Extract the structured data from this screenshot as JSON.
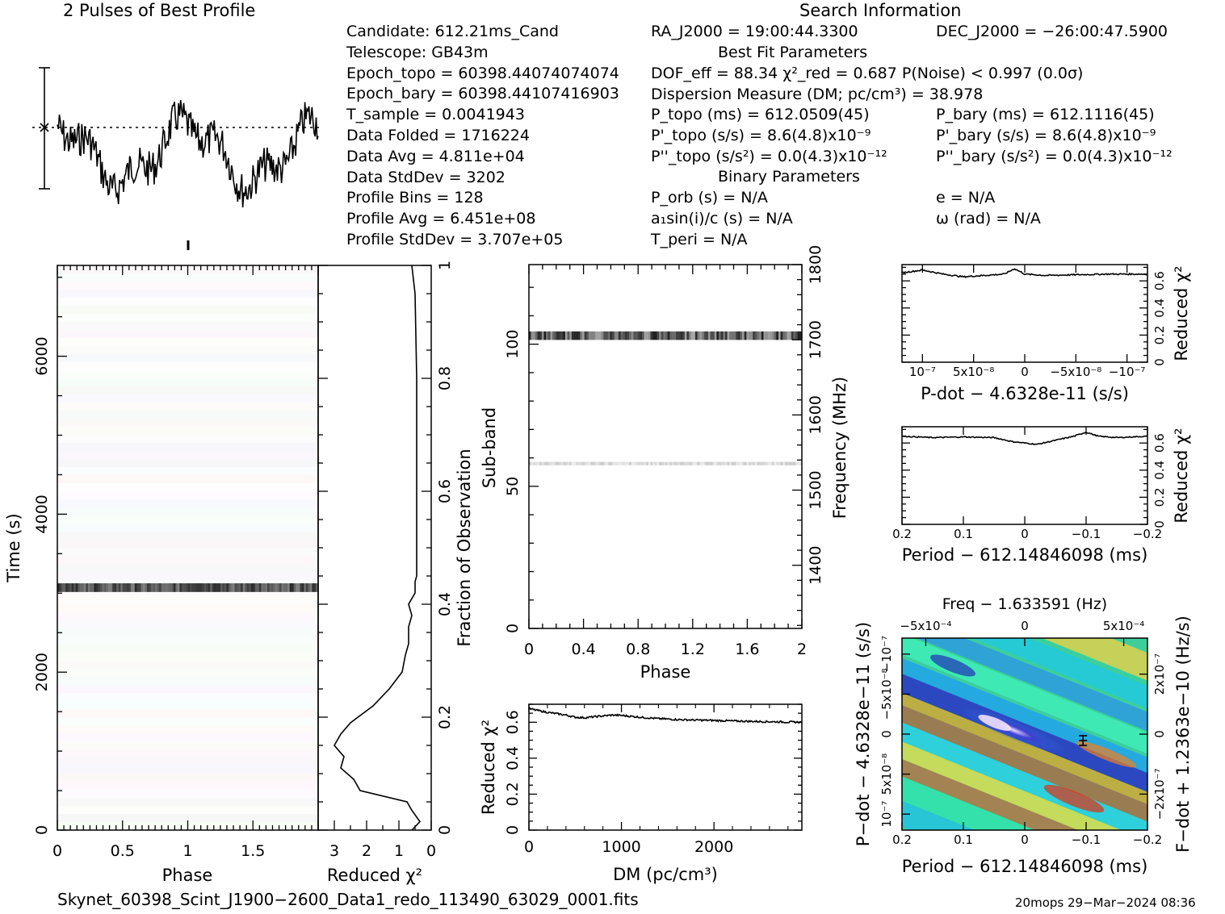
{
  "titles": {
    "profile": "2 Pulses of Best Profile",
    "search": "Search Information",
    "best_fit": "Best Fit Parameters",
    "binary": "Binary Parameters"
  },
  "info_left": [
    "Candidate:  612.21ms_Cand",
    "Telescope:  GB43m",
    "Epoch_topo = 60398.44074074074",
    "Epoch_bary = 60398.44107416903",
    "T_sample        =  0.0041943",
    "Data Folded     =  1716224",
    "Data Avg        =  4.811e+04",
    "Data StdDev     =  3202",
    "Profile Bins    =  128",
    "Profile Avg     =  6.451e+08",
    "Profile StdDev  =  3.707e+05"
  ],
  "info_mid": [
    "RA_J2000 = 19:00:44.3300",
    "DOF_eff = 88.34  χ²_red = 0.687  P(Noise) < 0.997  (0.0σ)",
    "Dispersion Measure (DM; pc/cm³) = 38.978",
    "P_topo (ms) =  612.0509(45)",
    "P'_topo (s/s) =  8.6(4.8)x10⁻⁹",
    "P''_topo (s/s²) = 0.0(4.3)x10⁻¹²",
    "P_orb (s) = N/A",
    "a₁sin(i)/c (s) = N/A",
    "T_peri = N/A"
  ],
  "info_right": [
    "DEC_J2000 = −26:00:47.5900",
    "P_bary (ms) =  612.1116(45)",
    "P'_bary (s/s) =  8.6(4.8)x10⁻⁹",
    "P''_bary (s/s²) = 0.0(4.3)x10⁻¹²",
    "e = N/A",
    "ω (rad) = N/A"
  ],
  "footer": {
    "filename": "Skynet_60398_Scint_J1900−2600_Data1_redo_113490_63029_0001.fits",
    "stamp": "20mops 29−Mar−2024 08:36"
  },
  "chart_data": [
    {
      "id": "time-phase",
      "type": "heatmap",
      "xlabel": "Phase",
      "ylabel": "Time (s)",
      "xlim": [
        0,
        2
      ],
      "ylim": [
        0,
        7150
      ],
      "x_ticks": [
        "0",
        "0.5",
        "1",
        "1.5"
      ],
      "y_ticks": [
        "0",
        "2000",
        "4000",
        "6000"
      ],
      "features": [
        {
          "label": "strong row",
          "time_center": 3070,
          "time_halfwidth": 55
        }
      ]
    },
    {
      "id": "reduced-chi2-vs-fraction",
      "type": "line",
      "xlabel": "Reduced χ²",
      "ylabel": "Fraction of Observation",
      "xlim": [
        3.5,
        0
      ],
      "ylim": [
        0,
        1
      ],
      "x_ticks": [
        "3",
        "2",
        "1",
        "0"
      ],
      "y_ticks": [
        "0",
        "0.2",
        "0.4",
        "0.6",
        "0.8",
        "1"
      ],
      "x": [
        0.6,
        0.35,
        0.6,
        0.75,
        2.2,
        2.4,
        2.8,
        2.7,
        3.0,
        2.8,
        2.5,
        1.8,
        1.3,
        0.9,
        0.8,
        0.7,
        0.7,
        0.6,
        0.7,
        0.5,
        0.5,
        0.45,
        0.45,
        0.45,
        0.5,
        0.6
      ],
      "y": [
        0,
        0.015,
        0.035,
        0.05,
        0.07,
        0.09,
        0.11,
        0.13,
        0.15,
        0.17,
        0.19,
        0.22,
        0.25,
        0.28,
        0.31,
        0.33,
        0.36,
        0.38,
        0.4,
        0.42,
        0.44,
        0.45,
        0.6,
        0.8,
        0.95,
        1.0
      ]
    },
    {
      "id": "subband-phase",
      "type": "heatmap",
      "xlabel": "Phase",
      "ylabel": "Sub-band",
      "y2label": "Frequency (MHz)",
      "xlim": [
        0,
        2
      ],
      "ylim": [
        0,
        128
      ],
      "y2lim": [
        1316,
        1800
      ],
      "x_ticks": [
        "0",
        "0.4",
        "0.8",
        "1.2",
        "1.6",
        "2"
      ],
      "y_ticks": [
        "0",
        "50",
        "100"
      ],
      "y2_ticks": [
        "1400",
        "1500",
        "1600",
        "1700",
        "1800"
      ],
      "features": [
        {
          "label": "strong band",
          "subband": 103
        },
        {
          "label": "faint band",
          "subband": 58
        }
      ]
    },
    {
      "id": "pulse-profile",
      "type": "line",
      "xlim": [
        0,
        2
      ],
      "series_hint": "noisy profile repeated twice, dips near phase 0.5 and 1.5"
    },
    {
      "id": "dm-curve",
      "type": "line",
      "xlabel": "DM (pc/cm³)",
      "ylabel": "Reduced χ²",
      "xlim": [
        0,
        2950
      ],
      "ylim": [
        0,
        0.7
      ],
      "x_ticks": [
        "0",
        "1000",
        "2000"
      ],
      "y_ticks": [
        "0",
        "0.2",
        "0.4",
        "0.6"
      ],
      "x": [
        0,
        200,
        400,
        500,
        600,
        800,
        900,
        1000,
        1200,
        1400,
        1600,
        1800,
        2000,
        2200,
        2400,
        2600,
        2800,
        2950
      ],
      "y": [
        0.675,
        0.655,
        0.64,
        0.628,
        0.625,
        0.635,
        0.64,
        0.638,
        0.628,
        0.62,
        0.615,
        0.612,
        0.61,
        0.607,
        0.605,
        0.603,
        0.601,
        0.6
      ]
    },
    {
      "id": "pdot-curve",
      "type": "line",
      "xlabel": "P-dot − 4.6328e-11 (s/s)",
      "ylabel": "Reduced χ²",
      "xlim": [
        1.2e-07,
        -1.2e-07
      ],
      "ylim": [
        0,
        0.72
      ],
      "x_ticks": [
        "10⁻⁷",
        "5x10⁻⁸",
        "0",
        "−5x10⁻⁸",
        "−10⁻⁷"
      ],
      "y_ticks": [
        "0",
        "0.2",
        "0.4",
        "0.6"
      ],
      "x": [
        1.2e-07,
        1e-07,
        8e-08,
        6e-08,
        4e-08,
        2e-08,
        1e-08,
        0,
        -2e-08,
        -5e-08,
        -8e-08,
        -1e-07,
        -1.2e-07
      ],
      "y": [
        0.66,
        0.68,
        0.65,
        0.63,
        0.64,
        0.65,
        0.69,
        0.65,
        0.64,
        0.645,
        0.65,
        0.65,
        0.65
      ]
    },
    {
      "id": "period-curve",
      "type": "line",
      "xlabel": "Period − 612.14846098 (ms)",
      "ylabel": "Reduced χ²",
      "xlim": [
        0.2,
        -0.2
      ],
      "ylim": [
        0,
        0.72
      ],
      "x_ticks": [
        "0.2",
        "0.1",
        "0",
        "−0.1",
        "−0.2"
      ],
      "y_ticks": [
        "0",
        "0.2",
        "0.4",
        "0.6"
      ],
      "x": [
        0.2,
        0.15,
        0.1,
        0.05,
        0.02,
        -0.02,
        -0.05,
        -0.08,
        -0.1,
        -0.12,
        -0.15,
        -0.2
      ],
      "y": [
        0.65,
        0.64,
        0.645,
        0.64,
        0.61,
        0.59,
        0.62,
        0.65,
        0.68,
        0.65,
        0.64,
        0.65
      ]
    },
    {
      "id": "period-pdot-plane",
      "type": "heatmap",
      "title": "Freq − 1.633591 (Hz)",
      "xlabel": "Period − 612.14846098 (ms)",
      "ylabel": "P−dot − 4.6328e−11 (s/s)",
      "y2label": "F−dot + 1.2363e−10 (Hz/s)",
      "x_ticks": [
        "0.2",
        "0.1",
        "0",
        "−0.1",
        "−0.2"
      ],
      "top_ticks": [
        "−5x10⁻⁴",
        "0",
        "5x10⁻⁴"
      ],
      "y_ticks": [
        "10⁻⁷",
        "5x10⁻⁸",
        "0",
        "−5x10⁻⁸",
        "−10⁻⁷"
      ],
      "y2_ticks": [
        "−2x10⁻⁷",
        "0",
        "2x10⁻⁷"
      ],
      "marker": {
        "period": -0.095,
        "pdot": 0
      }
    }
  ],
  "colors": {
    "ink": "#000000",
    "dotted": "#000000"
  }
}
